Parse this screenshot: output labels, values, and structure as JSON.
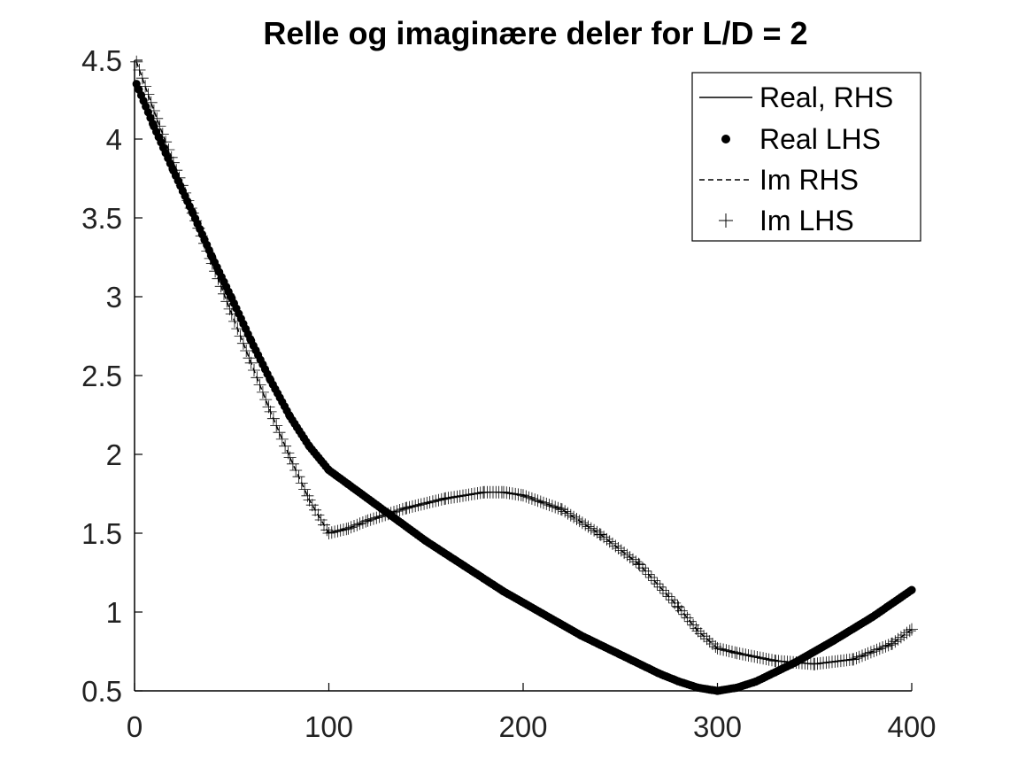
{
  "chart_data": {
    "type": "line",
    "title": "Relle og imaginære deler for L/D = 2",
    "xlabel": "",
    "ylabel": "",
    "xlim": [
      0,
      400
    ],
    "ylim": [
      0.5,
      4.5
    ],
    "xticks": [
      0,
      100,
      200,
      300,
      400
    ],
    "xtick_labels": [
      "0",
      "100",
      "200",
      "300",
      "400"
    ],
    "yticks": [
      0.5,
      1,
      1.5,
      2,
      2.5,
      3,
      3.5,
      4,
      4.5
    ],
    "ytick_labels": [
      "0.5",
      "1",
      "1.5",
      "2",
      "2.5",
      "3",
      "3.5",
      "4",
      "4.5"
    ],
    "grid": false,
    "legend_position": "top-right",
    "series": [
      {
        "name": "Real, RHS",
        "style": "solid",
        "color": "#000000",
        "x": [
          1,
          10,
          20,
          30,
          40,
          50,
          60,
          70,
          80,
          90,
          100,
          110,
          130,
          150,
          170,
          190,
          210,
          230,
          250,
          270,
          280,
          290,
          300,
          310,
          320,
          340,
          360,
          380,
          400
        ],
        "y": [
          4.35,
          4.08,
          3.8,
          3.53,
          3.25,
          2.99,
          2.72,
          2.47,
          2.24,
          2.05,
          1.9,
          1.81,
          1.63,
          1.45,
          1.29,
          1.13,
          0.99,
          0.85,
          0.73,
          0.61,
          0.56,
          0.52,
          0.5,
          0.52,
          0.56,
          0.68,
          0.82,
          0.97,
          1.14
        ]
      },
      {
        "name": "Real LHS",
        "style": "dots",
        "color": "#000000",
        "x": [
          1,
          10,
          20,
          30,
          40,
          50,
          60,
          70,
          80,
          90,
          100,
          110,
          130,
          150,
          170,
          190,
          210,
          230,
          250,
          270,
          280,
          290,
          300,
          310,
          320,
          340,
          360,
          380,
          400
        ],
        "y": [
          4.35,
          4.08,
          3.8,
          3.53,
          3.25,
          2.99,
          2.72,
          2.47,
          2.24,
          2.05,
          1.9,
          1.81,
          1.63,
          1.45,
          1.29,
          1.13,
          0.99,
          0.85,
          0.73,
          0.61,
          0.56,
          0.52,
          0.5,
          0.52,
          0.56,
          0.68,
          0.82,
          0.97,
          1.14
        ]
      },
      {
        "name": "Im RHS",
        "style": "dashed",
        "color": "#000000",
        "x": [
          1,
          10,
          20,
          30,
          40,
          50,
          60,
          70,
          80,
          90,
          100,
          110,
          120,
          140,
          160,
          180,
          190,
          200,
          220,
          240,
          260,
          280,
          290,
          300,
          310,
          330,
          350,
          370,
          390,
          400
        ],
        "y": [
          4.49,
          4.18,
          3.85,
          3.53,
          3.21,
          2.89,
          2.58,
          2.27,
          1.98,
          1.71,
          1.5,
          1.53,
          1.58,
          1.66,
          1.72,
          1.76,
          1.76,
          1.74,
          1.65,
          1.49,
          1.3,
          1.03,
          0.88,
          0.77,
          0.74,
          0.69,
          0.67,
          0.7,
          0.8,
          0.89
        ]
      },
      {
        "name": "Im LHS",
        "style": "plus",
        "color": "#000000",
        "x": [
          1,
          10,
          20,
          30,
          40,
          50,
          60,
          70,
          80,
          90,
          100,
          110,
          120,
          140,
          160,
          180,
          190,
          200,
          220,
          240,
          260,
          280,
          290,
          300,
          310,
          330,
          350,
          370,
          390,
          400
        ],
        "y": [
          4.49,
          4.18,
          3.85,
          3.53,
          3.21,
          2.89,
          2.58,
          2.27,
          1.98,
          1.71,
          1.5,
          1.53,
          1.58,
          1.66,
          1.72,
          1.76,
          1.76,
          1.74,
          1.65,
          1.49,
          1.3,
          1.03,
          0.88,
          0.77,
          0.74,
          0.69,
          0.67,
          0.7,
          0.8,
          0.89
        ]
      }
    ]
  }
}
